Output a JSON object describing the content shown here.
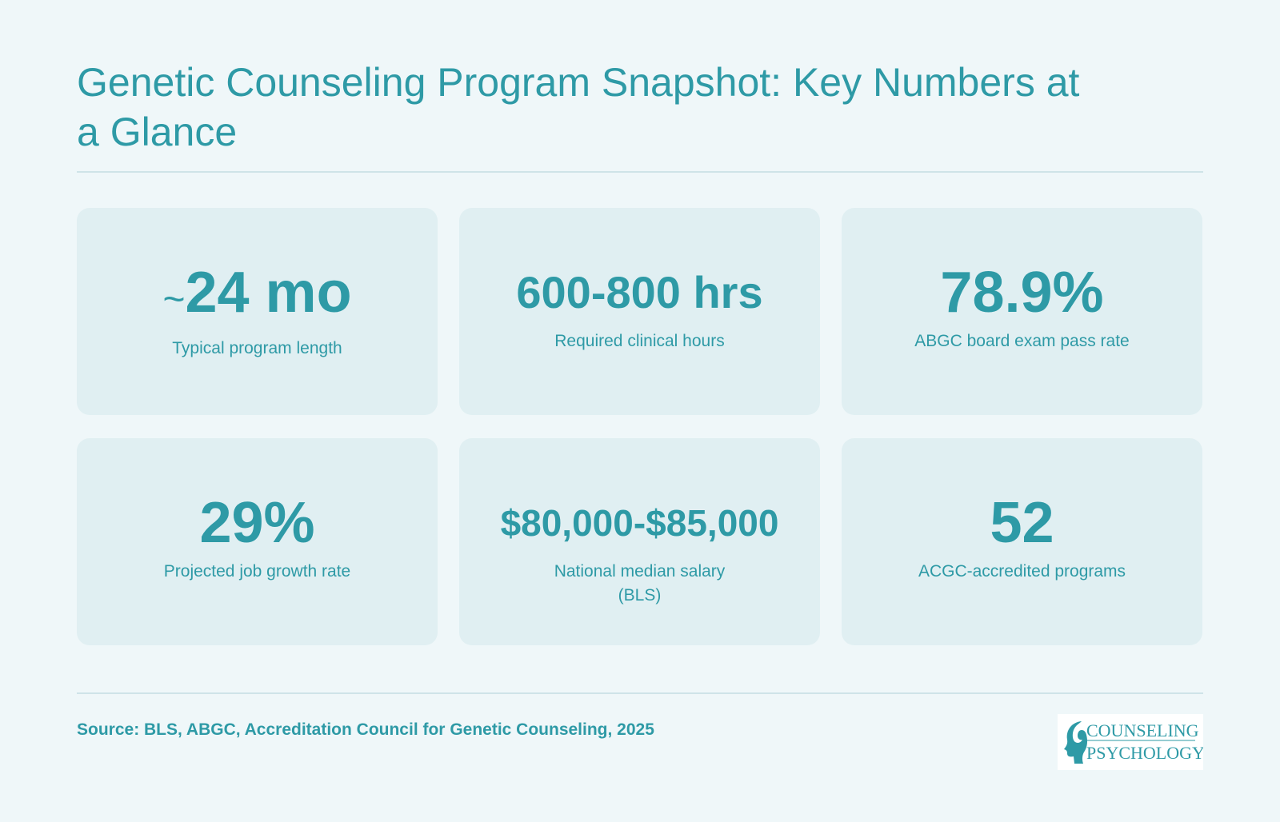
{
  "header": {
    "title": "Genetic Counseling Program Snapshot: Key Numbers at a Glance"
  },
  "stats": [
    {
      "tilde": "~",
      "value": "24 mo",
      "label": "Typical program length"
    },
    {
      "value": "600-800 hrs",
      "label": "Required clinical hours"
    },
    {
      "value": "78.9%",
      "label": "ABGC board exam pass rate"
    },
    {
      "value": "29%",
      "label": "Projected job growth rate"
    },
    {
      "value": "$80,000-$85,000",
      "label": "National median salary\n(BLS)"
    },
    {
      "value": "52",
      "label": "ACGC-accredited programs"
    }
  ],
  "footer": {
    "source": "Source: BLS, ABGC, Accreditation Council for Genetic Counseling, 2025"
  },
  "logo": {
    "line1": "COUNSELING",
    "line2": "PSYCHOLOGY",
    "icon": "head-profile-icon"
  },
  "colors": {
    "accent": "#2e9aa6",
    "background": "#eff7f9",
    "card": "#e0eff2",
    "rule": "#cfe4e8"
  }
}
